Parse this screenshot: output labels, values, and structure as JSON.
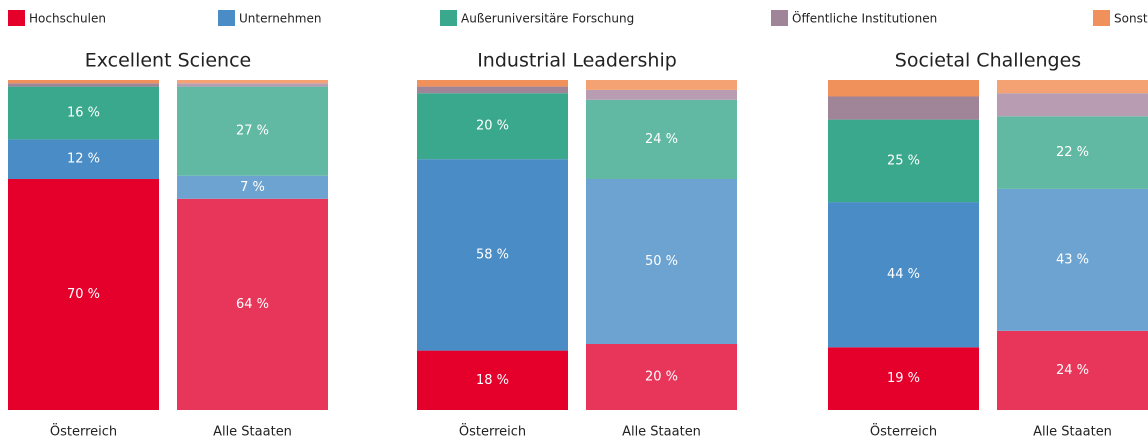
{
  "legend": [
    "Hochschulen",
    "Unternehmen",
    "Außeruniversitäre Forschung",
    "Öffentliche Institutionen",
    "Sonstige"
  ],
  "chart_data": [
    {
      "type": "bar",
      "stacked": true,
      "title": "Excellent Science",
      "categories": [
        "Österreich",
        "Alle Staaten"
      ],
      "ylim": [
        0,
        100
      ],
      "series": [
        {
          "colors": [
            "#e4002b",
            "#e8365a"
          ],
          "values": [
            70,
            64
          ],
          "value_labels": [
            "70 %",
            "64 %"
          ]
        },
        {
          "colors": [
            "#4a8cc5",
            "#6ca3d1"
          ],
          "values": [
            12,
            7
          ],
          "value_labels": [
            "12 %",
            "7 %"
          ]
        },
        {
          "colors": [
            "#3aa88c",
            "#62b9a3"
          ],
          "values": [
            16,
            27
          ],
          "value_labels": [
            "16 %",
            "27 %"
          ]
        },
        {
          "colors": [
            "#a08599",
            "#b89db2"
          ],
          "values": [
            1,
            1
          ],
          "value_labels": [
            null,
            null
          ]
        },
        {
          "colors": [
            "#f0905a",
            "#f4a274"
          ],
          "values": [
            1,
            1
          ],
          "value_labels": [
            null,
            null
          ]
        }
      ]
    },
    {
      "type": "bar",
      "stacked": true,
      "title": "Industrial Leadership",
      "categories": [
        "Österreich",
        "Alle Staaten"
      ],
      "ylim": [
        0,
        100
      ],
      "series": [
        {
          "colors": [
            "#e4002b",
            "#e8365a"
          ],
          "values": [
            18,
            20
          ],
          "value_labels": [
            "18 %",
            "20 %"
          ]
        },
        {
          "colors": [
            "#4a8cc5",
            "#6ca3d1"
          ],
          "values": [
            58,
            50
          ],
          "value_labels": [
            "58 %",
            "50 %"
          ]
        },
        {
          "colors": [
            "#3aa88c",
            "#62b9a3"
          ],
          "values": [
            20,
            24
          ],
          "value_labels": [
            "20 %",
            "24 %"
          ]
        },
        {
          "colors": [
            "#a08599",
            "#b89db2"
          ],
          "values": [
            2,
            3
          ],
          "value_labels": [
            null,
            null
          ]
        },
        {
          "colors": [
            "#f0905a",
            "#f4a274"
          ],
          "values": [
            2,
            3
          ],
          "value_labels": [
            null,
            null
          ]
        }
      ]
    },
    {
      "type": "bar",
      "stacked": true,
      "title": "Societal Challenges",
      "categories": [
        "Österreich",
        "Alle Staaten"
      ],
      "ylim": [
        0,
        100
      ],
      "series": [
        {
          "colors": [
            "#e4002b",
            "#e8365a"
          ],
          "values": [
            19,
            24
          ],
          "value_labels": [
            "19 %",
            "24 %"
          ]
        },
        {
          "colors": [
            "#4a8cc5",
            "#6ca3d1"
          ],
          "values": [
            44,
            43
          ],
          "value_labels": [
            "44 %",
            "43 %"
          ]
        },
        {
          "colors": [
            "#3aa88c",
            "#62b9a3"
          ],
          "values": [
            25,
            22
          ],
          "value_labels": [
            "25 %",
            "22 %"
          ]
        },
        {
          "colors": [
            "#a08599",
            "#b89db2"
          ],
          "values": [
            7,
            7
          ],
          "value_labels": [
            null,
            null
          ]
        },
        {
          "colors": [
            "#f0905a",
            "#f4a274"
          ],
          "values": [
            5,
            4
          ],
          "value_labels": [
            null,
            null
          ]
        }
      ]
    }
  ]
}
